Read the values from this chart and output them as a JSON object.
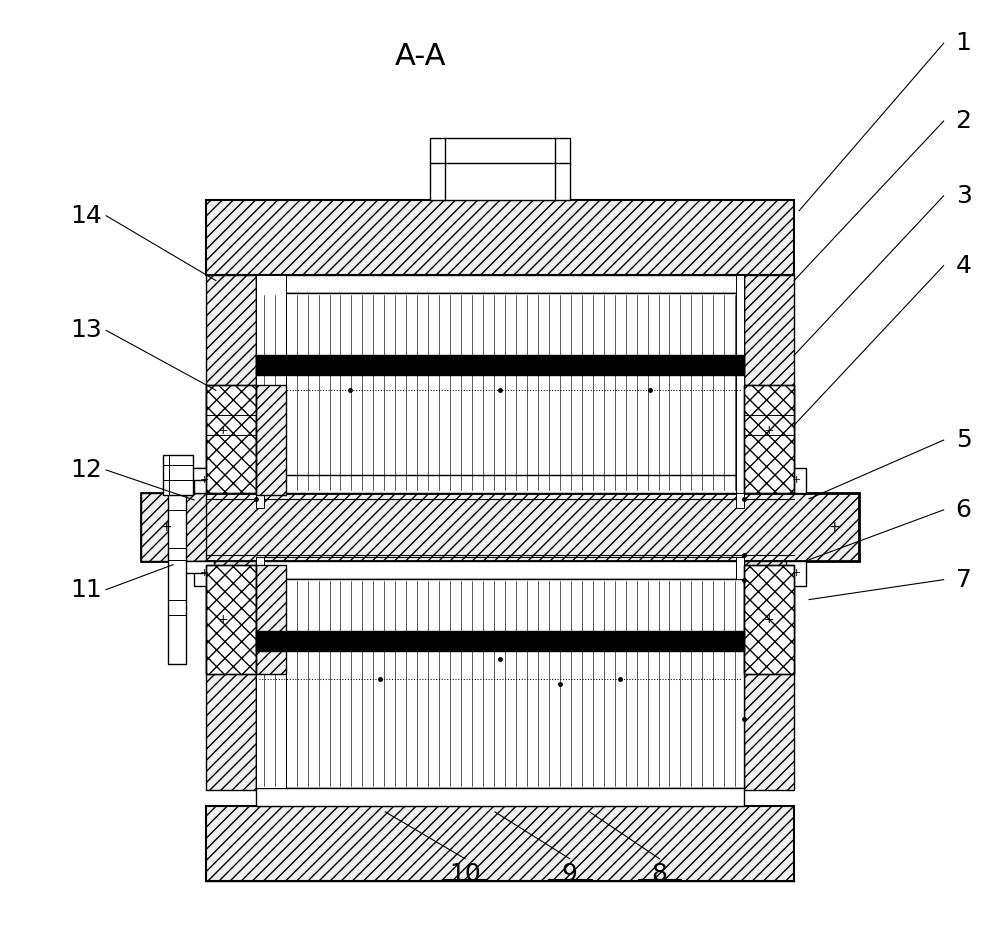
{
  "title": "A-A",
  "title_fontsize": 22,
  "label_fontsize": 18,
  "bg_color": "#ffffff",
  "lc": "#000000",
  "figsize": [
    10,
    9.25
  ],
  "dpi": 100
}
